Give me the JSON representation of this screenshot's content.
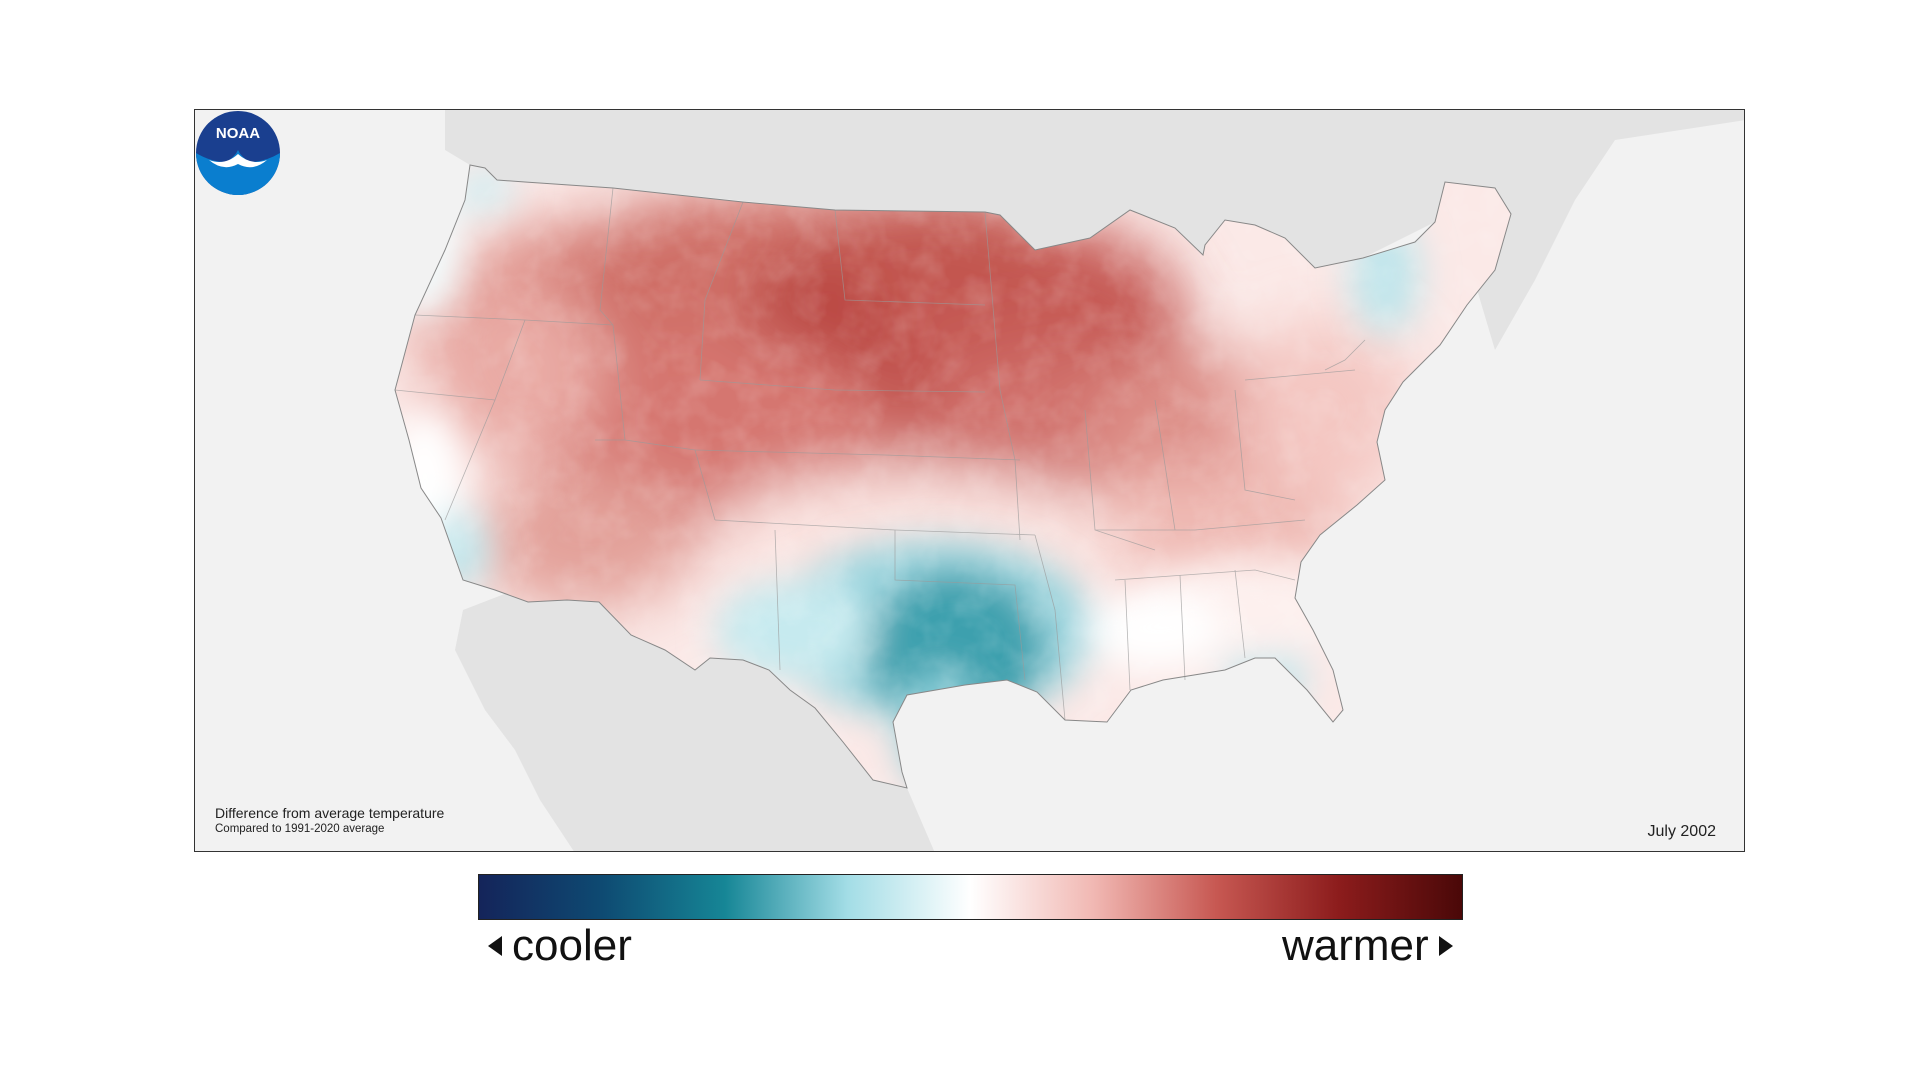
{
  "caption": {
    "title": "Difference from average temperature",
    "subtitle": "Compared to 1991-2020 average"
  },
  "date": "July 2002",
  "logo": {
    "text": "NOAA",
    "icon": "noaa-logo-icon"
  },
  "legend": {
    "low_label": "cooler",
    "high_label": "warmer",
    "colors": [
      "#14245a",
      "#0e4a72",
      "#168696",
      "#a3dde6",
      "#ffffff",
      "#f1b8b3",
      "#c75852",
      "#8c1c1c",
      "#4a0808"
    ]
  },
  "colors": {
    "land_outside": "#e3e3e3",
    "ocean": "#f2f2f2",
    "warm": "#c8504a",
    "warm_strong": "#a82f2c",
    "cool": "#2a9aaa",
    "cool_strong": "#107e90"
  }
}
